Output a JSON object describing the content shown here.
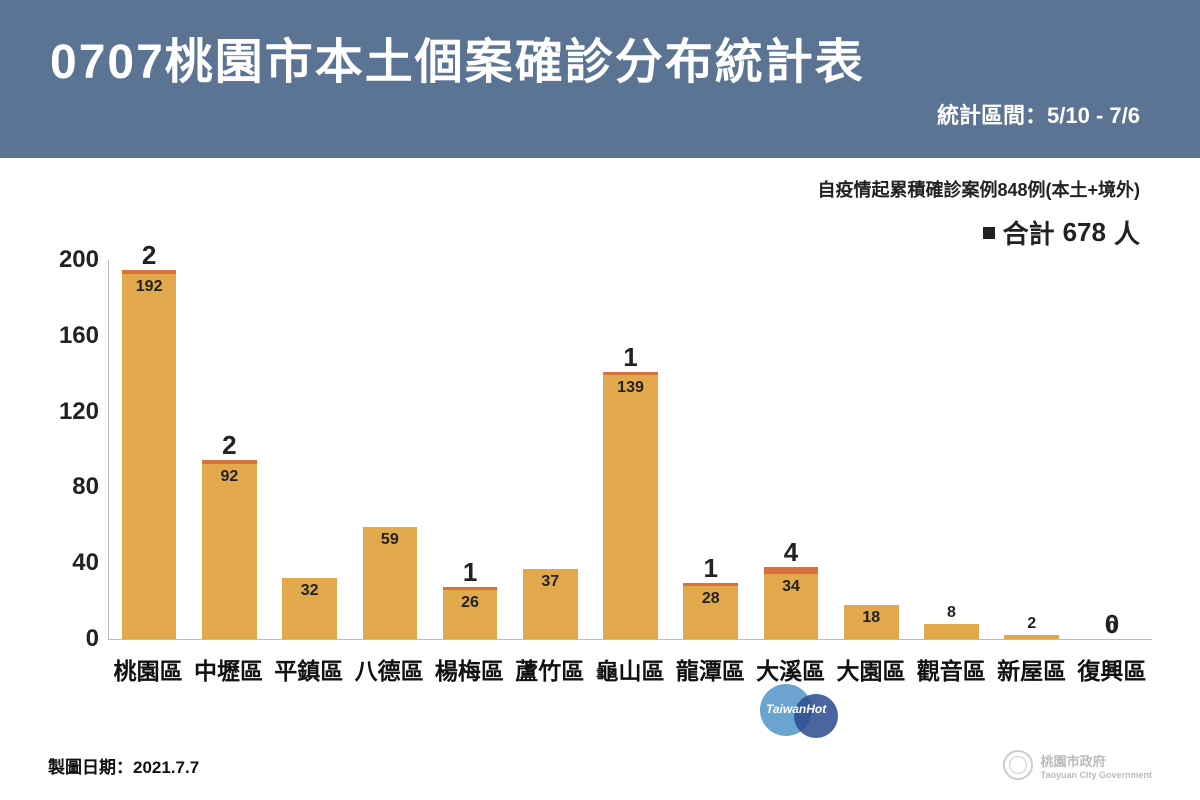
{
  "header": {
    "title": "0707桃園市本土個案確診分布統計表",
    "subtitle": "統計區間：5/10 - 7/6",
    "bg_color": "#5b7494",
    "text_color": "#ffffff"
  },
  "subheader": "自疫情起累積確診案例848例(本土+境外)",
  "legend": {
    "label_prefix": "合計",
    "total": 678,
    "label_suffix": "人"
  },
  "chart": {
    "type": "stacked-bar",
    "ylim": [
      0,
      200
    ],
    "yticks": [
      0,
      40,
      80,
      120,
      160,
      200
    ],
    "bar_main_color": "#e2a84c",
    "bar_top_color": "#d96f3a",
    "axis_color": "#bbbbbb",
    "label_fontsize": 24,
    "categories": [
      "桃園區",
      "中壢區",
      "平鎮區",
      "八德區",
      "楊梅區",
      "蘆竹區",
      "龜山區",
      "龍潭區",
      "大溪區",
      "大園區",
      "觀音區",
      "新屋區",
      "復興區"
    ],
    "base_values": [
      192,
      92,
      32,
      59,
      26,
      37,
      139,
      28,
      34,
      18,
      8,
      2,
      0
    ],
    "added_values": [
      2,
      2,
      null,
      null,
      1,
      null,
      1,
      1,
      4,
      null,
      null,
      null,
      0
    ],
    "bar_width_pct": 68
  },
  "footer": {
    "date_label": "製圖日期：2021.7.7",
    "gov_label": "桃園市政府",
    "gov_sub": "Taoyuan City Government"
  },
  "watermark": {
    "text": "TaiwanHot",
    "c1": "#4f95c5",
    "c2": "#2b4a8e"
  }
}
